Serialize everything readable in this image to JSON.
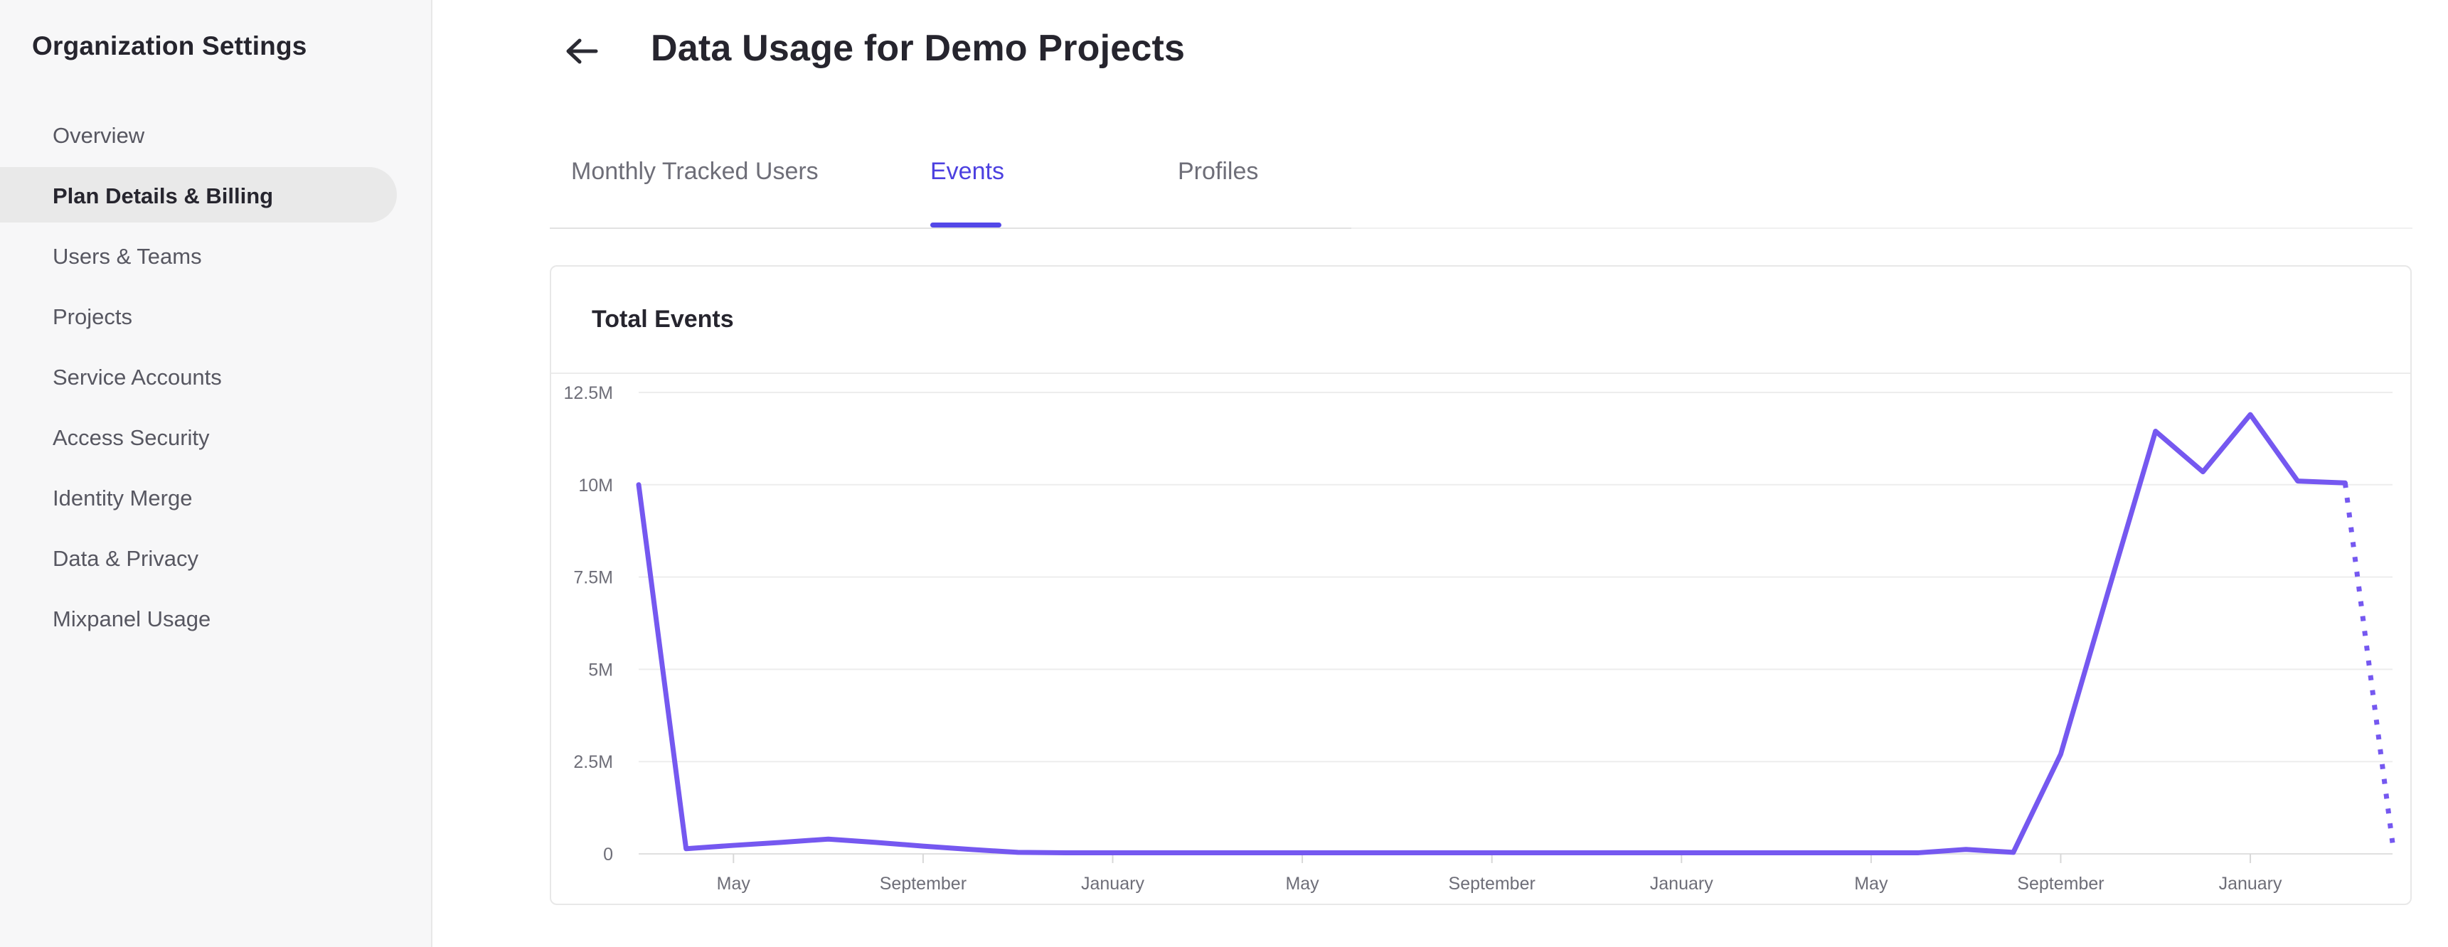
{
  "sidebar": {
    "title": "Organization Settings",
    "items": [
      {
        "label": "Overview",
        "active": false
      },
      {
        "label": "Plan Details & Billing",
        "active": true
      },
      {
        "label": "Users & Teams",
        "active": false
      },
      {
        "label": "Projects",
        "active": false
      },
      {
        "label": "Service Accounts",
        "active": false
      },
      {
        "label": "Access Security",
        "active": false
      },
      {
        "label": "Identity Merge",
        "active": false
      },
      {
        "label": "Data & Privacy",
        "active": false
      },
      {
        "label": "Mixpanel Usage",
        "active": false
      }
    ]
  },
  "header": {
    "title": "Data Usage for Demo Projects",
    "back_icon": "arrow-left-icon"
  },
  "tabs": {
    "items": [
      {
        "label": "Monthly Tracked Users",
        "active": false
      },
      {
        "label": "Events",
        "active": true
      },
      {
        "label": "Profiles",
        "active": false
      }
    ]
  },
  "chart_data": {
    "type": "line",
    "title": "Total Events",
    "xlabel": "",
    "ylabel": "",
    "ylim": [
      0,
      12.5
    ],
    "grid": "horizontal",
    "legend": "none",
    "x_axis_note": "monthly points; tick labels every 4 months; final point is a dotted projection segment",
    "y_ticks": [
      {
        "label": "0",
        "value": 0
      },
      {
        "label": "2.5M",
        "value": 2.5
      },
      {
        "label": "5M",
        "value": 5
      },
      {
        "label": "7.5M",
        "value": 7.5
      },
      {
        "label": "10M",
        "value": 10
      },
      {
        "label": "12.5M",
        "value": 12.5
      }
    ],
    "x_ticks": [
      {
        "label": "May",
        "month_index": 2
      },
      {
        "label": "September",
        "month_index": 6
      },
      {
        "label": "January",
        "month_index": 10
      },
      {
        "label": "May",
        "month_index": 14
      },
      {
        "label": "September",
        "month_index": 18
      },
      {
        "label": "January",
        "month_index": 22
      },
      {
        "label": "May",
        "month_index": 26
      },
      {
        "label": "September",
        "month_index": 30
      },
      {
        "label": "January",
        "month_index": 34
      }
    ],
    "series": [
      {
        "name": "Total Events",
        "unit": "millions",
        "values": [
          10,
          0.14,
          0.23,
          0.31,
          0.4,
          0.31,
          0.21,
          0.12,
          0.04,
          0.03,
          0.03,
          0.03,
          0.03,
          0.03,
          0.03,
          0.03,
          0.03,
          0.03,
          0.03,
          0.03,
          0.03,
          0.03,
          0.03,
          0.03,
          0.03,
          0.03,
          0.03,
          0.03,
          0.12,
          0.04,
          2.7,
          7.1,
          11.45,
          10.35,
          11.9,
          10.1,
          10.05,
          0.3
        ]
      }
    ],
    "last_segment": "dotted"
  },
  "theme": {
    "accent_purple": "#4C40E0",
    "indicator_purple": "#5348E8",
    "line_purple": "#7558F0",
    "dark_text": "#26252E",
    "gray_text": "#6E6E78",
    "sidebar_bg": "#F7F7F8",
    "pill_bg": "#E9E9E9",
    "border": "#E8E8E8",
    "grid_line": "#EDEDED",
    "axis_line": "#E0E0E0",
    "tick_color": "#D8D8D8"
  }
}
